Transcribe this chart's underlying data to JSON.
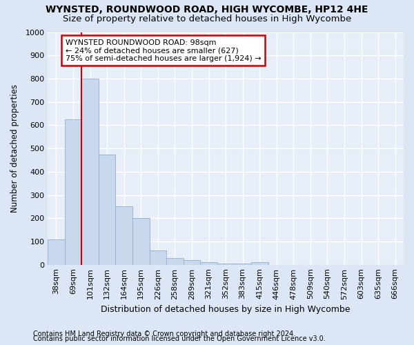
{
  "title": "WYNSTED, ROUNDWOOD ROAD, HIGH WYCOMBE, HP12 4HE",
  "subtitle": "Size of property relative to detached houses in High Wycombe",
  "xlabel": "Distribution of detached houses by size in High Wycombe",
  "ylabel": "Number of detached properties",
  "footnote1": "Contains HM Land Registry data © Crown copyright and database right 2024.",
  "footnote2": "Contains public sector information licensed under the Open Government Licence v3.0.",
  "categories": [
    "38sqm",
    "69sqm",
    "101sqm",
    "132sqm",
    "164sqm",
    "195sqm",
    "226sqm",
    "258sqm",
    "289sqm",
    "321sqm",
    "352sqm",
    "383sqm",
    "415sqm",
    "446sqm",
    "478sqm",
    "509sqm",
    "540sqm",
    "572sqm",
    "603sqm",
    "635sqm",
    "666sqm"
  ],
  "values": [
    110,
    625,
    800,
    475,
    250,
    200,
    60,
    30,
    20,
    12,
    5,
    5,
    10,
    0,
    0,
    0,
    0,
    0,
    0,
    0,
    0
  ],
  "bar_color": "#c8d9ee",
  "bar_edge_color": "#9ab4d4",
  "red_line_index": 2,
  "red_line_color": "#cc0000",
  "annotation_text": "WYNSTED ROUNDWOOD ROAD: 98sqm\n← 24% of detached houses are smaller (627)\n75% of semi-detached houses are larger (1,924) →",
  "annotation_box_facecolor": "#ffffff",
  "annotation_box_edgecolor": "#cc0000",
  "ylim": [
    0,
    1000
  ],
  "yticks": [
    0,
    100,
    200,
    300,
    400,
    500,
    600,
    700,
    800,
    900,
    1000
  ],
  "bg_color": "#dce6f5",
  "plot_bg_color": "#e8eef8",
  "grid_color": "#ffffff",
  "title_fontsize": 10,
  "subtitle_fontsize": 9.5,
  "xlabel_fontsize": 9,
  "ylabel_fontsize": 8.5,
  "tick_fontsize": 8,
  "footnote_fontsize": 7,
  "annotation_fontsize": 8
}
